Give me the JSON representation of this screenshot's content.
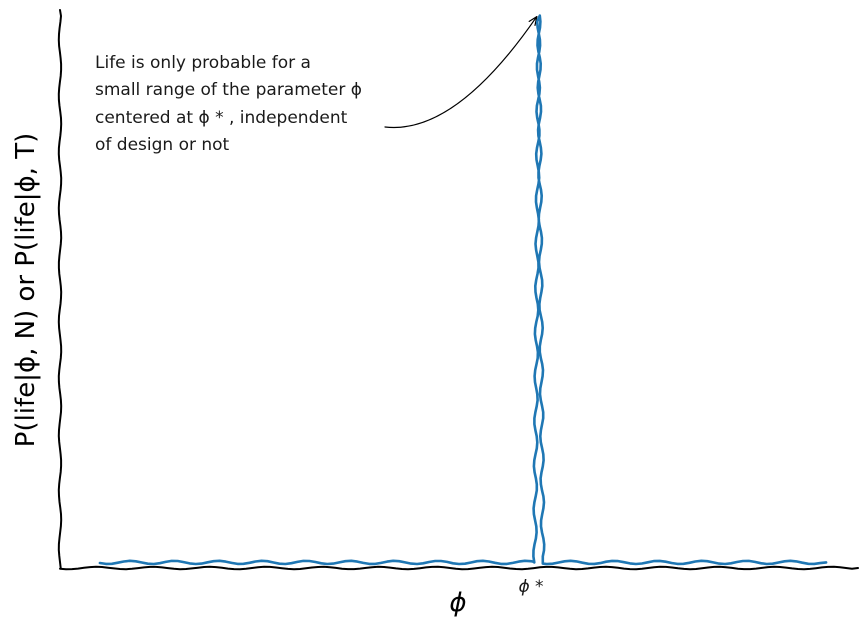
{
  "chart_data": {
    "type": "line",
    "title": "",
    "xlabel": "ϕ",
    "ylabel": "P(life|ϕ, N) or P(life|ϕ, T)",
    "style": "xkcd hand-drawn",
    "grid": false,
    "xlim": [
      0,
      1
    ],
    "ylim": [
      0,
      1
    ],
    "tick_labels": {
      "x": [
        "ϕ *"
      ]
    },
    "series": [
      {
        "color": "#1f77b4",
        "x": [
          0.05,
          0.59,
          0.595,
          0.6,
          0.605,
          0.61,
          0.96
        ],
        "y": [
          0.01,
          0.01,
          0.01,
          0.99,
          0.01,
          0.01,
          0.01
        ]
      }
    ],
    "annotation": {
      "lines": [
        "Life is only probable for a",
        "small range of the parameter ϕ",
        "centered at ϕ * , independent",
        "of design or not"
      ],
      "points_to": {
        "x": 0.6,
        "y": 0.99
      }
    }
  }
}
